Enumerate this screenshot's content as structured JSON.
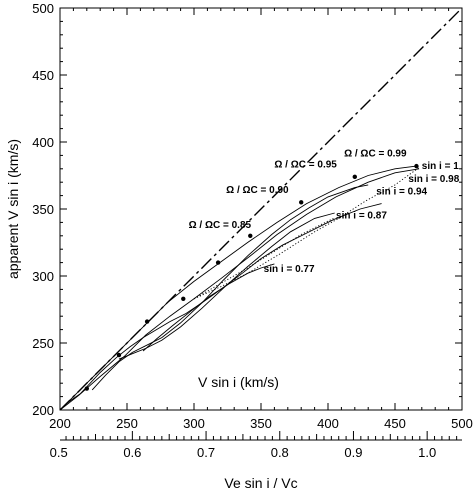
{
  "chart_data": {
    "type": "line",
    "xlabel": "V sin i (km/s)",
    "ylabel": "apparent V sin i (km/s)",
    "x2label": "Ve sin i / Vc",
    "xlim": [
      200,
      500
    ],
    "ylim": [
      200,
      500
    ],
    "x_ticks": [
      "200",
      "250",
      "300",
      "350",
      "400",
      "450",
      "500"
    ],
    "y_ticks": [
      "200",
      "250",
      "300",
      "350",
      "400",
      "450",
      "500"
    ],
    "x2_ticks": [
      "0.5",
      "0.6",
      "0.7",
      "0.8",
      "0.9",
      "1.0"
    ],
    "x2_tick_values": [
      0.5,
      0.6,
      0.7,
      0.8,
      0.9,
      1.0
    ],
    "x2_to_x": {
      "a": -76.0,
      "b": 550.0
    },
    "grid": false,
    "series": [
      {
        "style": "dashdot",
        "x": [
          200,
          500
        ],
        "y": [
          200,
          500
        ]
      },
      {
        "style": "solid",
        "x": [
          200,
          212,
          228,
          245,
          262,
          280,
          300,
          318,
          340,
          362,
          384,
          408,
          430,
          450,
          466
        ],
        "y": [
          200,
          212,
          228,
          245,
          262,
          280,
          296,
          309,
          325,
          340,
          354,
          366,
          375,
          380,
          382
        ]
      },
      {
        "style": "solid",
        "x": [
          200,
          214,
          230,
          248,
          264,
          282,
          300,
          320,
          342,
          362,
          384,
          406,
          430,
          450,
          468
        ],
        "y": [
          200,
          211,
          225,
          240,
          256,
          270,
          283,
          298,
          315,
          331,
          346,
          359,
          370,
          377,
          380
        ]
      },
      {
        "style": "solid",
        "x": [
          205,
          215,
          230,
          242,
          252,
          262,
          272,
          282,
          294,
          306,
          320,
          336,
          350,
          366,
          384,
          404,
          424,
          440
        ],
        "y": [
          205,
          212,
          228,
          239,
          247,
          254,
          260,
          266,
          272,
          280,
          290,
          302,
          313,
          323,
          332,
          342,
          350,
          354
        ]
      },
      {
        "style": "solid",
        "x": [
          224,
          234,
          244,
          254,
          264,
          276,
          290,
          306,
          322,
          340,
          358,
          372,
          386,
          400,
          420,
          430
        ],
        "y": [
          215,
          226,
          236,
          243,
          248,
          254,
          265,
          280,
          297,
          315,
          331,
          342,
          351,
          359,
          366,
          368
        ]
      },
      {
        "style": "solid",
        "x": [
          244,
          254,
          264,
          276,
          290,
          306,
          322,
          340,
          358,
          372,
          390,
          405
        ],
        "y": [
          238,
          242,
          246,
          252,
          262,
          276,
          291,
          307,
          322,
          333,
          343,
          347
        ]
      },
      {
        "style": "solid",
        "x": [
          262,
          272,
          284,
          298,
          312,
          326,
          340,
          350,
          360
        ],
        "y": [
          244,
          253,
          263,
          274,
          285,
          294,
          302,
          306,
          309
        ]
      },
      {
        "style": "dotted",
        "x": [
          300,
          320,
          340,
          365,
          390,
          408,
          428,
          450,
          468
        ],
        "y": [
          283,
          292,
          302,
          317,
          333,
          343,
          356,
          368,
          381
        ]
      },
      {
        "style": "dotted",
        "x": [
          300,
          340,
          380,
          404
        ],
        "y": [
          283,
          306,
          331,
          343
        ]
      }
    ],
    "points": {
      "x": [
        220,
        244,
        265,
        292,
        318,
        342,
        380,
        420,
        466
      ],
      "y": [
        216,
        241,
        266,
        283,
        310,
        330,
        355,
        374,
        382
      ]
    },
    "annotations": [
      {
        "text": "Ω / ΩC = 0.99",
        "x": 412,
        "y": 389
      },
      {
        "text": "Ω / ΩC = 0.95",
        "x": 360,
        "y": 381
      },
      {
        "text": "Ω / ΩC = 0.90",
        "x": 324,
        "y": 362
      },
      {
        "text": "Ω / ΩC = 0.85",
        "x": 296,
        "y": 336
      },
      {
        "text": "sin i = 1",
        "x": 470,
        "y": 380
      },
      {
        "text": "sin i = 0.98",
        "x": 460,
        "y": 370
      },
      {
        "text": "sin i = 0.94",
        "x": 436,
        "y": 361
      },
      {
        "text": "sin i = 0.87",
        "x": 406,
        "y": 343
      },
      {
        "text": "sin i = 0.77",
        "x": 352,
        "y": 303
      },
      {
        "text": "V sin i (km/s)",
        "x": 303,
        "y": 217
      }
    ]
  }
}
